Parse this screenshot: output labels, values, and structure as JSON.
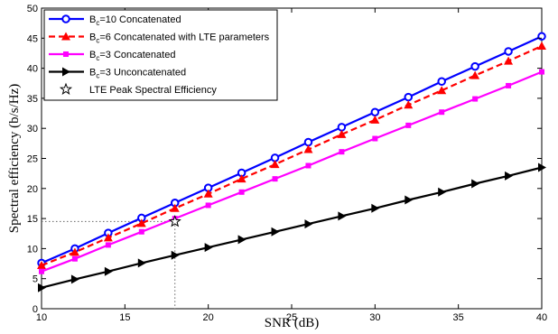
{
  "chart_data": {
    "type": "line",
    "xlabel": "SNR (dB)",
    "ylabel": "Spectral efficiency (b/s/Hz)",
    "xlim": [
      10,
      40
    ],
    "ylim": [
      0,
      50
    ],
    "xticks": [
      10,
      15,
      20,
      25,
      30,
      35,
      40
    ],
    "yticks": [
      0,
      5,
      10,
      15,
      20,
      25,
      30,
      35,
      40,
      45,
      50
    ],
    "grid": false,
    "legend_position": "top-left",
    "series": [
      {
        "name": "B_c=10 Concatenated",
        "legend_prefix": "B",
        "legend_sub": "c",
        "legend_rest": "=10 Concatenated",
        "color": "#0000ff",
        "dash": "solid",
        "marker": "circle",
        "x": [
          10,
          12,
          14,
          16,
          18,
          20,
          22,
          24,
          26,
          28,
          30,
          32,
          34,
          36,
          38,
          40
        ],
        "y": [
          7.6,
          10.0,
          12.6,
          15.1,
          17.6,
          20.1,
          22.6,
          25.1,
          27.7,
          30.2,
          32.7,
          35.2,
          37.8,
          40.3,
          42.8,
          45.3
        ]
      },
      {
        "name": "B_c=6 Concatenated with LTE parameters",
        "legend_prefix": "B",
        "legend_sub": "c",
        "legend_rest": "=6 Concatenated with LTE parameters",
        "color": "#ff0000",
        "dash": "dashed",
        "marker": "triangle-up",
        "x": [
          10,
          12,
          14,
          16,
          18,
          20,
          22,
          24,
          26,
          28,
          30,
          32,
          34,
          36,
          38,
          40
        ],
        "y": [
          7.2,
          9.4,
          11.8,
          14.2,
          16.7,
          19.1,
          21.6,
          24.0,
          26.5,
          29.0,
          31.4,
          33.9,
          36.3,
          38.8,
          41.2,
          43.7
        ]
      },
      {
        "name": "B_c=3 Concatenated",
        "legend_prefix": "B",
        "legend_sub": "c",
        "legend_rest": "=3 Concatenated",
        "color": "#ff00ff",
        "dash": "solid",
        "marker": "square",
        "x": [
          10,
          12,
          14,
          16,
          18,
          20,
          22,
          24,
          26,
          28,
          30,
          32,
          34,
          36,
          38,
          40
        ],
        "y": [
          6.2,
          8.3,
          10.6,
          12.8,
          15.0,
          17.2,
          19.4,
          21.6,
          23.8,
          26.1,
          28.3,
          30.5,
          32.7,
          34.9,
          37.1,
          39.4
        ]
      },
      {
        "name": "B_c=3 Unconcatenated",
        "legend_prefix": "B",
        "legend_sub": "c",
        "legend_rest": "=3 Unconcatenated",
        "color": "#000000",
        "dash": "solid",
        "marker": "triangle-right",
        "x": [
          10,
          12,
          14,
          16,
          18,
          20,
          22,
          24,
          26,
          28,
          30,
          32,
          34,
          36,
          38,
          40
        ],
        "y": [
          3.5,
          4.9,
          6.2,
          7.6,
          8.9,
          10.2,
          11.5,
          12.8,
          14.1,
          15.4,
          16.7,
          18.1,
          19.4,
          20.8,
          22.1,
          23.5
        ]
      },
      {
        "name": "LTE Peak Spectral Efficiency",
        "legend_prefix": "",
        "legend_sub": "",
        "legend_rest": "LTE Peak Spectral Efficiency",
        "color": "#000000",
        "dash": "none",
        "marker": "star",
        "x": [
          18
        ],
        "y": [
          14.5
        ]
      }
    ],
    "reference_lines": {
      "x": 18,
      "y": 14.5,
      "color": "#666666",
      "style": "dotted"
    }
  }
}
